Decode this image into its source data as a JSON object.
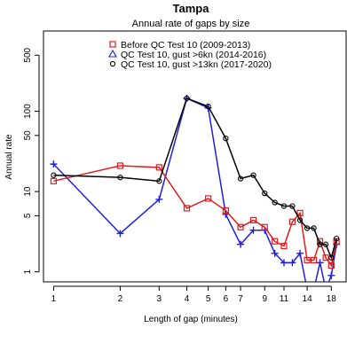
{
  "chart_data": {
    "type": "line",
    "title": "Tampa",
    "subtitle": "Annual rate of gaps by size",
    "xlabel": "Length of gap (minutes)",
    "ylabel": "Annual rate",
    "x_scale": "log",
    "y_scale": "log",
    "xlim": [
      0.9,
      21
    ],
    "ylim": [
      0.75,
      1000
    ],
    "x_ticks": [
      1,
      2,
      3,
      4,
      5,
      6,
      7,
      9,
      11,
      14,
      18
    ],
    "y_ticks": [
      1,
      5,
      10,
      50,
      100,
      500
    ],
    "legend_position": "top-right",
    "series": [
      {
        "name": "Before QC Test 10 (2009-2013)",
        "color": "#e41a1c",
        "marker": "square",
        "x": [
          1,
          2,
          3,
          4,
          5,
          6,
          7,
          8,
          9,
          10,
          11,
          12,
          13,
          14,
          15,
          16,
          17,
          18,
          19
        ],
        "y": [
          13.5,
          21,
          20,
          6.2,
          8.2,
          5.8,
          3.6,
          4.4,
          3.6,
          2.4,
          2.1,
          4.2,
          5.4,
          1.4,
          1.4,
          2.4,
          1.5,
          1.2,
          2.4
        ]
      },
      {
        "name": "QC Test 10, gust >6kn (2014-2016)",
        "color": "#1f1fe0",
        "marker": "plus",
        "x": [
          1,
          2,
          3,
          4,
          5,
          6,
          7,
          8,
          9,
          10,
          11,
          12,
          13,
          14,
          15,
          16,
          17,
          18,
          19
        ],
        "y": [
          22,
          3,
          8,
          145,
          110,
          5.2,
          2.2,
          3.3,
          3.3,
          1.7,
          1.3,
          1.3,
          1.7,
          0.6,
          0.6,
          1.3,
          0.6,
          0.9,
          2.2
        ]
      },
      {
        "name": "QC Test 10, gust >13kn (2017-2020)",
        "color": "#000000",
        "marker": "circle",
        "x": [
          1,
          2,
          3,
          4,
          5,
          6,
          7,
          8,
          9,
          10,
          11,
          12,
          13,
          14,
          15,
          16,
          17,
          18,
          19
        ],
        "y": [
          16,
          15,
          13.5,
          145,
          115,
          46,
          14.5,
          16,
          9.5,
          7.3,
          6.6,
          6.6,
          4.4,
          3.5,
          3.5,
          2.2,
          2.2,
          1.5,
          2.6
        ]
      }
    ]
  }
}
